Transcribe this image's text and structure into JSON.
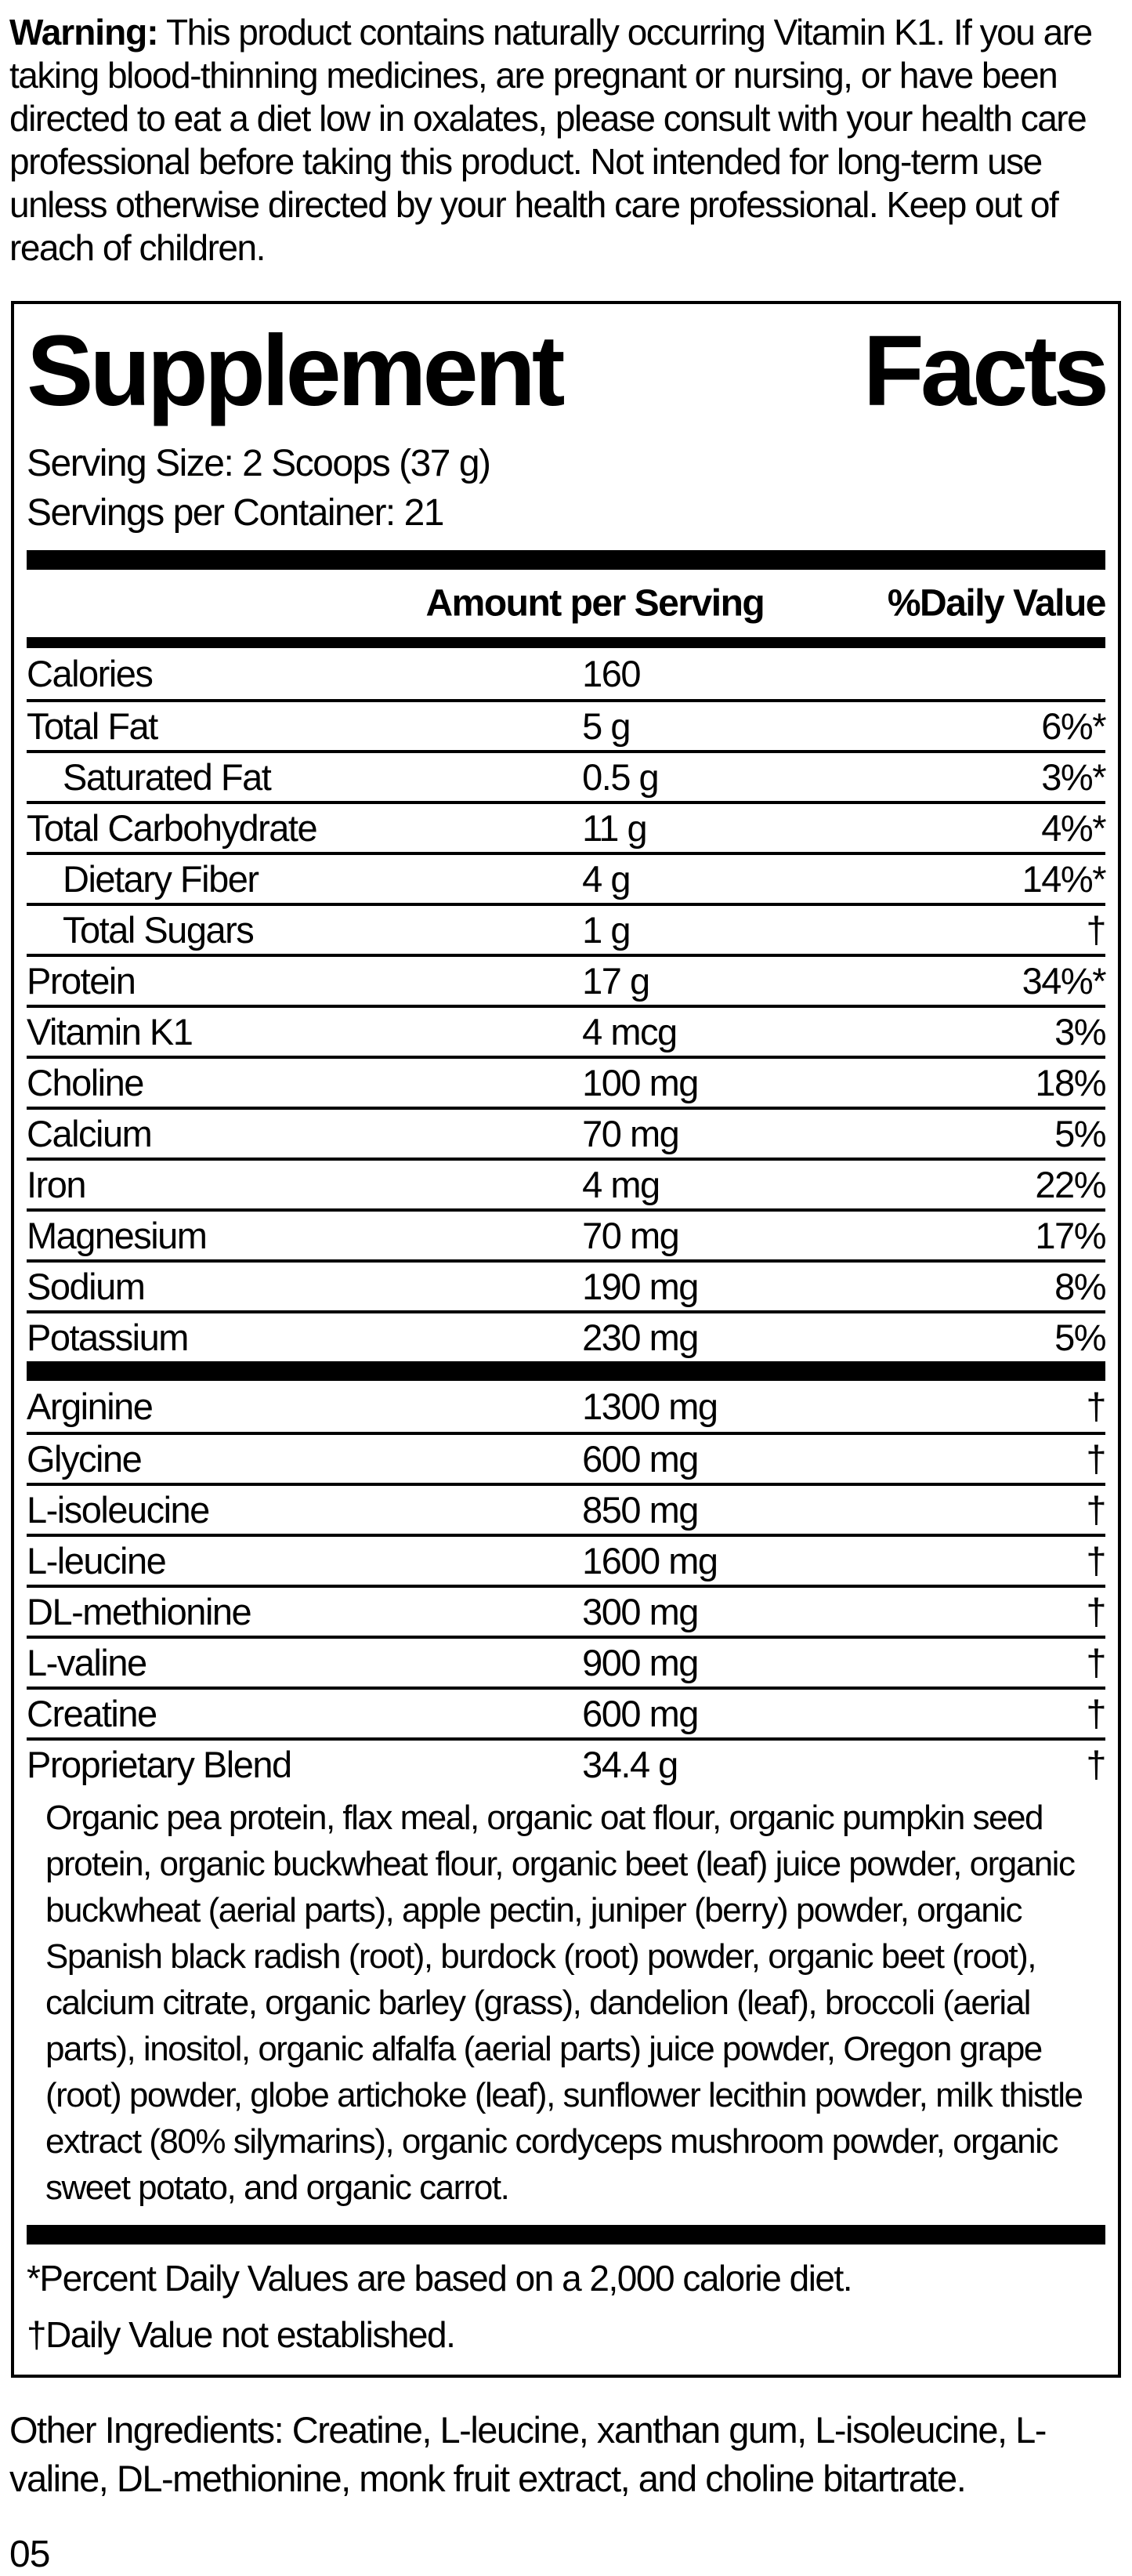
{
  "colors": {
    "text": "#000000",
    "background": "#ffffff"
  },
  "warning": {
    "label": "Warning:",
    "text": " This product contains naturally occurring Vitamin K1. If you are taking blood-thinning medicines, are pregnant or nursing, or have been directed to eat a diet low in oxalates, please consult with your health care professional before taking this product. Not intended for long-term use unless otherwise directed by your health care professional. Keep out of reach of children."
  },
  "panel": {
    "title_word1": "Supplement",
    "title_word2": "Facts",
    "serving_size": "Serving Size: 2 Scoops (37 g)",
    "servings_per_container": "Servings per Container: 21",
    "columns": {
      "amount": "Amount per Serving",
      "dv": "%Daily Value"
    },
    "rows_main": [
      {
        "name": "Calories",
        "amount": "160",
        "dv": "",
        "indent": false
      },
      {
        "name": "Total Fat",
        "amount": "5 g",
        "dv": "6%*",
        "indent": false
      },
      {
        "name": "Saturated Fat",
        "amount": "0.5 g",
        "dv": "3%*",
        "indent": true
      },
      {
        "name": "Total Carbohydrate",
        "amount": "11 g",
        "dv": "4%*",
        "indent": false
      },
      {
        "name": "Dietary Fiber",
        "amount": "4 g",
        "dv": "14%*",
        "indent": true
      },
      {
        "name": "Total Sugars",
        "amount": "1 g",
        "dv": "†",
        "indent": true
      },
      {
        "name": "Protein",
        "amount": "17 g",
        "dv": "34%*",
        "indent": false
      },
      {
        "name": "Vitamin K1",
        "amount": "4 mcg",
        "dv": "3%",
        "indent": false
      },
      {
        "name": "Choline",
        "amount": "100 mg",
        "dv": "18%",
        "indent": false
      },
      {
        "name": "Calcium",
        "amount": "70 mg",
        "dv": "5%",
        "indent": false
      },
      {
        "name": "Iron",
        "amount": "4 mg",
        "dv": "22%",
        "indent": false
      },
      {
        "name": "Magnesium",
        "amount": "70 mg",
        "dv": "17%",
        "indent": false
      },
      {
        "name": "Sodium",
        "amount": "190 mg",
        "dv": "8%",
        "indent": false
      },
      {
        "name": "Potassium",
        "amount": "230 mg",
        "dv": "5%",
        "indent": false
      }
    ],
    "rows_amino": [
      {
        "name": "Arginine",
        "amount": "1300 mg",
        "dv": "†",
        "indent": false
      },
      {
        "name": "Glycine",
        "amount": "600 mg",
        "dv": "†",
        "indent": false
      },
      {
        "name": "L-isoleucine",
        "amount": "850 mg",
        "dv": "†",
        "indent": false
      },
      {
        "name": "L-leucine",
        "amount": "1600 mg",
        "dv": "†",
        "indent": false
      },
      {
        "name": "DL-methionine",
        "amount": "300 mg",
        "dv": "†",
        "indent": false
      },
      {
        "name": "L-valine",
        "amount": "900 mg",
        "dv": "†",
        "indent": false
      },
      {
        "name": "Creatine",
        "amount": "600 mg",
        "dv": "†",
        "indent": false
      },
      {
        "name": "Proprietary Blend",
        "amount": "34.4 g",
        "dv": "†",
        "indent": false
      }
    ],
    "blend_description": "Organic pea protein, flax meal, organic oat flour, organic pumpkin seed protein, organic buckwheat flour, organic beet (leaf) juice powder, organic buckwheat (aerial parts), apple pectin, juniper (berry) powder, organic Spanish black radish (root), burdock (root) powder, organic beet (root), calcium citrate, organic barley (grass), dandelion (leaf), broccoli (aerial parts), inositol, organic alfalfa (aerial parts) juice powder, Oregon grape (root) powder, globe artichoke (leaf), sunflower lecithin powder, milk thistle extract (80% silymarins), organic cordyceps mushroom powder, organic sweet potato, and organic carrot.",
    "footnotes": [
      "*Percent Daily Values are based on a 2,000 calorie diet.",
      "†Daily Value not established."
    ]
  },
  "other_ingredients": "Other Ingredients: Creatine, L-leucine, xanthan gum, L-isoleucine, L-valine, DL-methionine, monk fruit extract, and choline bitartrate.",
  "page_number": "05"
}
